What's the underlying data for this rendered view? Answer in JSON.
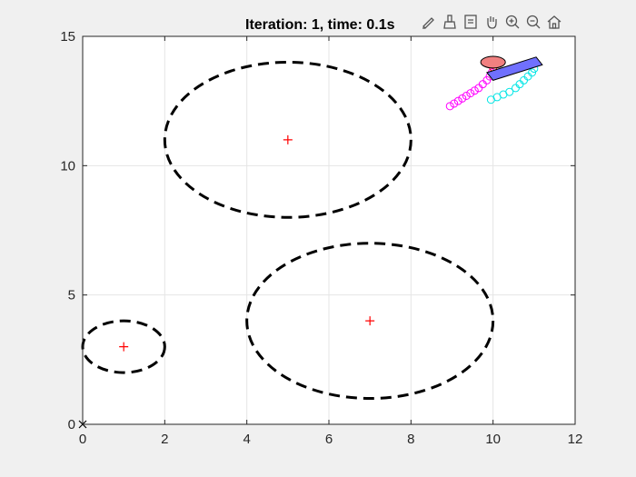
{
  "toolbar": {
    "icons": [
      "edit-plot-icon",
      "brush-icon",
      "data-tip-icon",
      "pan-icon",
      "zoom-in-icon",
      "zoom-out-icon",
      "home-icon"
    ]
  },
  "chart_data": {
    "type": "scatter",
    "title": "Iteration: 1, time: 0.1s",
    "xlabel": "",
    "ylabel": "",
    "xlim": [
      0,
      12
    ],
    "ylim": [
      0,
      15
    ],
    "x_ticks": [
      0,
      2,
      4,
      6,
      8,
      10,
      12
    ],
    "y_ticks": [
      0,
      5,
      10,
      15
    ],
    "grid": true,
    "obstacles": [
      {
        "center": [
          1,
          3
        ],
        "radius_x": 1,
        "radius_y": 1,
        "style": "dashed",
        "color": "#000000"
      },
      {
        "center": [
          5,
          11
        ],
        "radius_x": 3,
        "radius_y": 3,
        "style": "dashed",
        "color": "#000000"
      },
      {
        "center": [
          7,
          4
        ],
        "radius_x": 3,
        "radius_y": 3,
        "style": "dashed",
        "color": "#000000"
      }
    ],
    "obstacle_centers": [
      [
        1,
        3
      ],
      [
        5,
        11
      ],
      [
        7,
        4
      ]
    ],
    "origin_marker": [
      0,
      0
    ],
    "trajectories": [
      {
        "color": "#ff00ff",
        "points": [
          [
            8.95,
            12.3
          ],
          [
            9.05,
            12.4
          ],
          [
            9.15,
            12.5
          ],
          [
            9.25,
            12.6
          ],
          [
            9.35,
            12.7
          ],
          [
            9.45,
            12.8
          ],
          [
            9.55,
            12.9
          ],
          [
            9.65,
            13.0
          ],
          [
            9.75,
            13.15
          ],
          [
            9.85,
            13.3
          ],
          [
            9.92,
            13.45
          ],
          [
            9.97,
            13.6
          ]
        ]
      },
      {
        "color": "#00e5e5",
        "points": [
          [
            9.95,
            12.55
          ],
          [
            10.1,
            12.65
          ],
          [
            10.25,
            12.75
          ],
          [
            10.4,
            12.85
          ],
          [
            10.55,
            13.0
          ],
          [
            10.65,
            13.15
          ],
          [
            10.75,
            13.3
          ],
          [
            10.85,
            13.45
          ],
          [
            10.95,
            13.6
          ],
          [
            11.0,
            13.75
          ]
        ]
      },
      {
        "color": "#ff0000",
        "points": [
          [
            10.0,
            13.8
          ],
          [
            10.0,
            13.9
          ],
          [
            10.0,
            14.0
          ]
        ]
      }
    ],
    "robot_circle": {
      "center": [
        10.0,
        14.0
      ],
      "radius": 0.3,
      "fill": "#f08080",
      "stroke": "#000000"
    },
    "robot_body": {
      "corners": [
        [
          9.85,
          13.6
        ],
        [
          11.05,
          14.2
        ],
        [
          11.2,
          13.9
        ],
        [
          10.0,
          13.3
        ]
      ],
      "fill": "#7070ff",
      "stroke": "#000000"
    },
    "center_marker_color": "#ff0000",
    "obstacle_color": "#000000",
    "grid_color": "#e5e5e5",
    "axes_background": "#ffffff"
  }
}
